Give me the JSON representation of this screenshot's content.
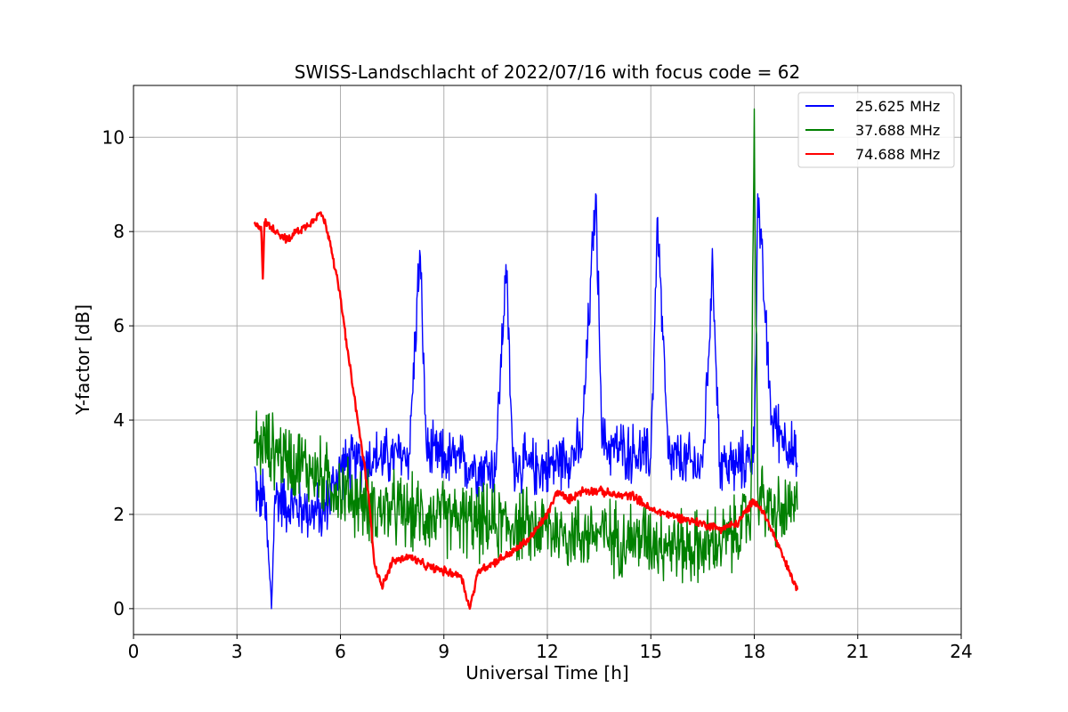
{
  "chart_data": {
    "type": "line",
    "title": "SWISS-Landschlacht of 2022/07/16 with focus code = 62",
    "xlabel": "Universal Time [h]",
    "ylabel": "Y-factor [dB]",
    "xlim": [
      0,
      24
    ],
    "ylim": [
      -0.55,
      11.1
    ],
    "xticks": [
      0,
      3,
      6,
      9,
      12,
      15,
      18,
      21,
      24
    ],
    "xtick_labels": [
      "0",
      "3",
      "6",
      "9",
      "12",
      "15",
      "18",
      "21",
      "24"
    ],
    "yticks": [
      0,
      2,
      4,
      6,
      8,
      10
    ],
    "ytick_labels": [
      "0",
      "2",
      "4",
      "6",
      "8",
      "10"
    ],
    "grid": true,
    "legend_position": "top-right",
    "series": [
      {
        "name": "25.625 MHz",
        "color": "#0000ff",
        "x": [
          3.5,
          3.6,
          3.8,
          4.0,
          4.1,
          4.5,
          5.0,
          5.5,
          6.0,
          6.5,
          7.0,
          7.5,
          8.0,
          8.3,
          8.5,
          9.0,
          9.5,
          10.0,
          10.5,
          10.8,
          11.0,
          11.5,
          12.0,
          12.5,
          13.0,
          13.4,
          13.6,
          14.0,
          14.5,
          15.0,
          15.2,
          15.5,
          16.0,
          16.5,
          16.8,
          17.0,
          17.5,
          18.0,
          18.1,
          18.5,
          19.0,
          19.25
        ],
        "y": [
          3.0,
          2.3,
          2.4,
          0.0,
          2.4,
          2.2,
          2.1,
          2.0,
          3.0,
          3.1,
          3.2,
          3.2,
          3.3,
          7.6,
          3.3,
          3.2,
          3.1,
          3.0,
          3.0,
          7.3,
          3.1,
          3.0,
          3.0,
          3.2,
          3.4,
          8.8,
          3.5,
          3.4,
          3.3,
          3.2,
          8.3,
          3.2,
          3.1,
          3.0,
          7.2,
          3.1,
          3.0,
          3.3,
          8.8,
          4.0,
          3.5,
          3.0
        ]
      },
      {
        "name": "37.688 MHz",
        "color": "#008000",
        "x": [
          3.5,
          4.0,
          4.5,
          5.0,
          5.5,
          6.0,
          6.5,
          7.0,
          7.5,
          8.0,
          8.5,
          9.0,
          9.5,
          10.0,
          10.5,
          11.0,
          11.5,
          12.0,
          12.5,
          13.0,
          13.5,
          14.0,
          14.5,
          15.0,
          15.5,
          16.0,
          16.5,
          17.0,
          17.5,
          17.9,
          18.0,
          18.1,
          18.5,
          19.0,
          19.25
        ],
        "y": [
          3.5,
          3.4,
          3.2,
          3.0,
          2.8,
          2.5,
          2.3,
          2.1,
          2.1,
          2.0,
          2.0,
          1.9,
          1.9,
          1.8,
          1.8,
          1.8,
          1.7,
          1.7,
          1.6,
          1.6,
          1.6,
          1.5,
          1.5,
          1.5,
          1.4,
          1.3,
          1.3,
          1.4,
          1.6,
          2.0,
          10.6,
          2.5,
          2.0,
          2.0,
          2.1
        ]
      },
      {
        "name": "74.688 MHz",
        "color": "#ff0000",
        "x": [
          3.5,
          3.7,
          3.75,
          3.8,
          4.0,
          4.5,
          4.7,
          5.0,
          5.4,
          5.5,
          5.7,
          6.0,
          6.2,
          6.5,
          6.8,
          7.0,
          7.2,
          7.3,
          7.5,
          8.0,
          8.5,
          9.0,
          9.5,
          9.75,
          10.0,
          10.5,
          11.0,
          11.5,
          12.0,
          12.3,
          12.6,
          13.0,
          13.5,
          14.0,
          14.5,
          15.0,
          15.5,
          16.0,
          16.5,
          17.0,
          17.5,
          17.9,
          18.0,
          18.3,
          18.6,
          19.0,
          19.25
        ],
        "y": [
          8.2,
          8.1,
          7.0,
          8.2,
          8.1,
          7.8,
          8.0,
          8.1,
          8.4,
          8.3,
          7.8,
          6.6,
          5.5,
          4.0,
          2.5,
          0.9,
          0.5,
          0.6,
          1.0,
          1.1,
          0.9,
          0.8,
          0.7,
          0.0,
          0.8,
          1.0,
          1.2,
          1.5,
          2.0,
          2.5,
          2.3,
          2.5,
          2.5,
          2.4,
          2.4,
          2.1,
          2.0,
          1.9,
          1.8,
          1.7,
          1.8,
          2.2,
          2.3,
          2.0,
          1.5,
          0.8,
          0.4
        ]
      }
    ]
  }
}
